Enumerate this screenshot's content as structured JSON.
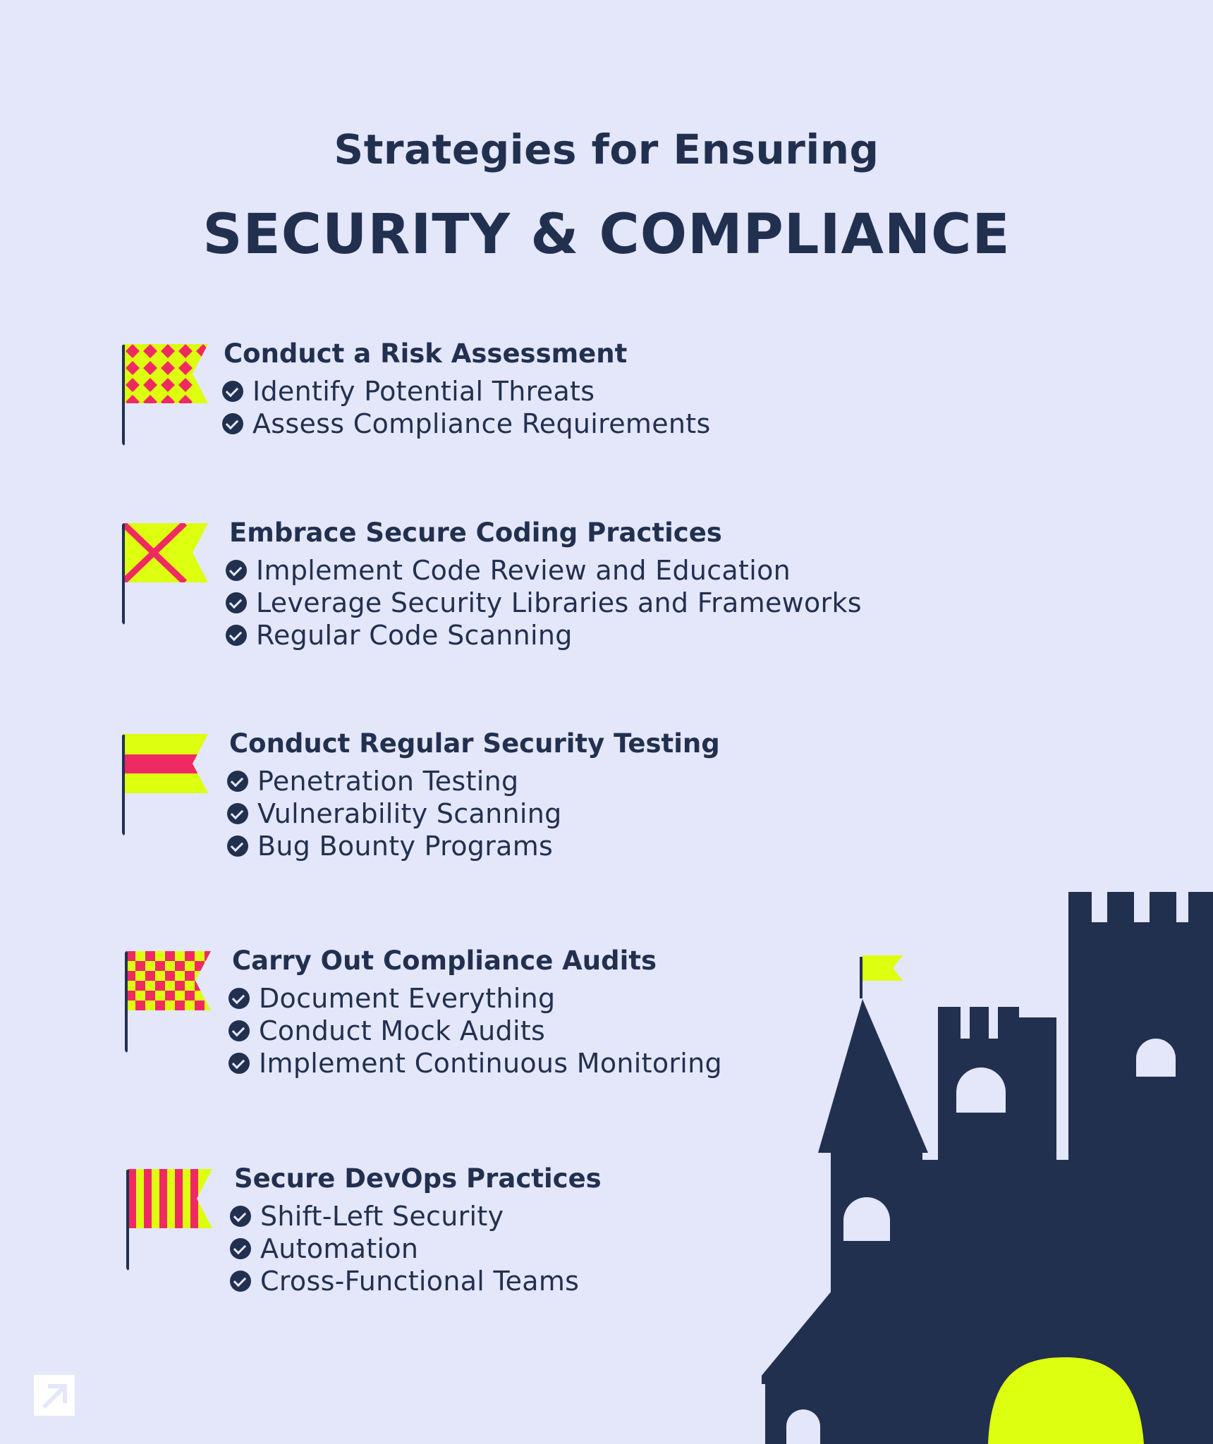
{
  "header": {
    "pre_title": "Strategies for Ensuring",
    "main_title": "SECURITY & COMPLIANCE"
  },
  "sections": [
    {
      "title": "Conduct a Risk Assessment",
      "flag_icon": "diamond-pattern-flag-icon",
      "items": [
        "Identify Potential Threats",
        "Assess Compliance Requirements"
      ]
    },
    {
      "title": "Embrace Secure Coding Practices",
      "flag_icon": "saltire-flag-icon",
      "items": [
        "Implement Code Review and Education",
        "Leverage Security Libraries and Frameworks",
        "Regular Code Scanning"
      ]
    },
    {
      "title": "Conduct Regular Security Testing",
      "flag_icon": "stripe-flag-icon",
      "items": [
        "Penetration Testing",
        "Vulnerability Scanning",
        "Bug Bounty Programs"
      ]
    },
    {
      "title": "Carry Out Compliance Audits",
      "flag_icon": "checkered-flag-icon",
      "items": [
        "Document Everything",
        "Conduct Mock Audits",
        "Implement Continuous Monitoring"
      ]
    },
    {
      "title": "Secure DevOps Practices",
      "flag_icon": "vertical-stripes-flag-icon",
      "items": [
        "Shift-Left Security",
        "Automation",
        "Cross-Functional Teams"
      ]
    }
  ],
  "colors": {
    "background": "#e3e7f9",
    "navy": "#223050",
    "lime": "#ddff10",
    "pink": "#ef2a63"
  },
  "illustration": "castle-icon",
  "brand_logo": "arrow-logo-icon"
}
